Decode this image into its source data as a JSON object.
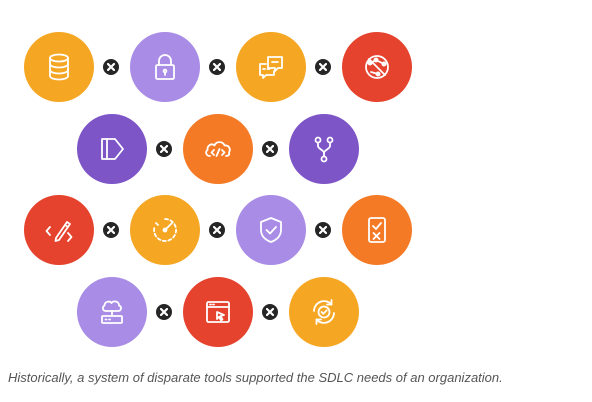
{
  "caption": "Historically, a system of disparate tools supported the SDLC needs of an organization.",
  "colors": {
    "yellow": "#f5a623",
    "lavender": "#a98ce6",
    "red": "#e5432d",
    "purple": "#7e55c7",
    "orange": "#f47a26",
    "separator": "#262626"
  },
  "tools": [
    {
      "icon": "database-icon",
      "color": "#f5a623"
    },
    {
      "icon": "lock-icon",
      "color": "#a98ce6"
    },
    {
      "icon": "chat-bubbles-icon",
      "color": "#f5a623"
    },
    {
      "icon": "network-blocked-icon",
      "color": "#e5432d"
    },
    {
      "icon": "tag-icon",
      "color": "#7e55c7"
    },
    {
      "icon": "cloud-code-icon",
      "color": "#f47a26"
    },
    {
      "icon": "git-branch-icon",
      "color": "#7e55c7"
    },
    {
      "icon": "pencil-code-icon",
      "color": "#e5432d"
    },
    {
      "icon": "speed-gauge-icon",
      "color": "#f5a623"
    },
    {
      "icon": "shield-check-icon",
      "color": "#a98ce6"
    },
    {
      "icon": "checklist-icon",
      "color": "#f47a26"
    },
    {
      "icon": "cloud-server-icon",
      "color": "#a98ce6"
    },
    {
      "icon": "browser-cursor-icon",
      "color": "#e5432d"
    },
    {
      "icon": "refresh-check-icon",
      "color": "#f5a623"
    }
  ]
}
